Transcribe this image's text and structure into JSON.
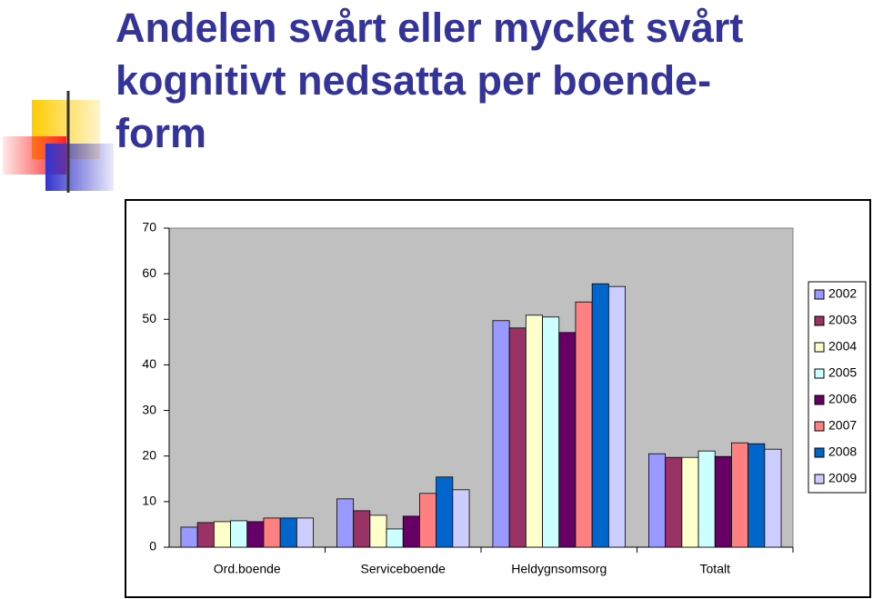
{
  "chart_data": {
    "type": "bar",
    "title": [
      "Andelen svårt eller mycket svårt",
      "kognitivt nedsatta per boende-",
      "form"
    ],
    "categories": [
      "Ord.boende",
      "Serviceboende",
      "Heldygnsomsorg",
      "Totalt"
    ],
    "series": [
      {
        "name": "2002",
        "color": "#9999ff",
        "values": [
          4.4,
          10.6,
          49.7,
          20.5
        ]
      },
      {
        "name": "2003",
        "color": "#993366",
        "values": [
          5.4,
          8.0,
          48.1,
          19.7
        ]
      },
      {
        "name": "2004",
        "color": "#ffffcc",
        "values": [
          5.6,
          7.0,
          50.9,
          19.7
        ]
      },
      {
        "name": "2005",
        "color": "#ccffff",
        "values": [
          5.8,
          4.0,
          50.5,
          21.1
        ]
      },
      {
        "name": "2006",
        "color": "#660066",
        "values": [
          5.6,
          6.8,
          47.1,
          19.9
        ]
      },
      {
        "name": "2007",
        "color": "#ff8080",
        "values": [
          6.4,
          11.8,
          53.8,
          22.9
        ]
      },
      {
        "name": "2008",
        "color": "#0066cc",
        "values": [
          6.4,
          15.4,
          57.8,
          22.7
        ]
      },
      {
        "name": "2009",
        "color": "#ccccff",
        "values": [
          6.4,
          12.6,
          57.2,
          21.5
        ]
      }
    ],
    "ylim": [
      0,
      70
    ],
    "yticks": [
      0,
      10,
      20,
      30,
      40,
      50,
      60,
      70
    ],
    "grid": false,
    "plot_background": "#c0c0c0",
    "legend": "right"
  }
}
